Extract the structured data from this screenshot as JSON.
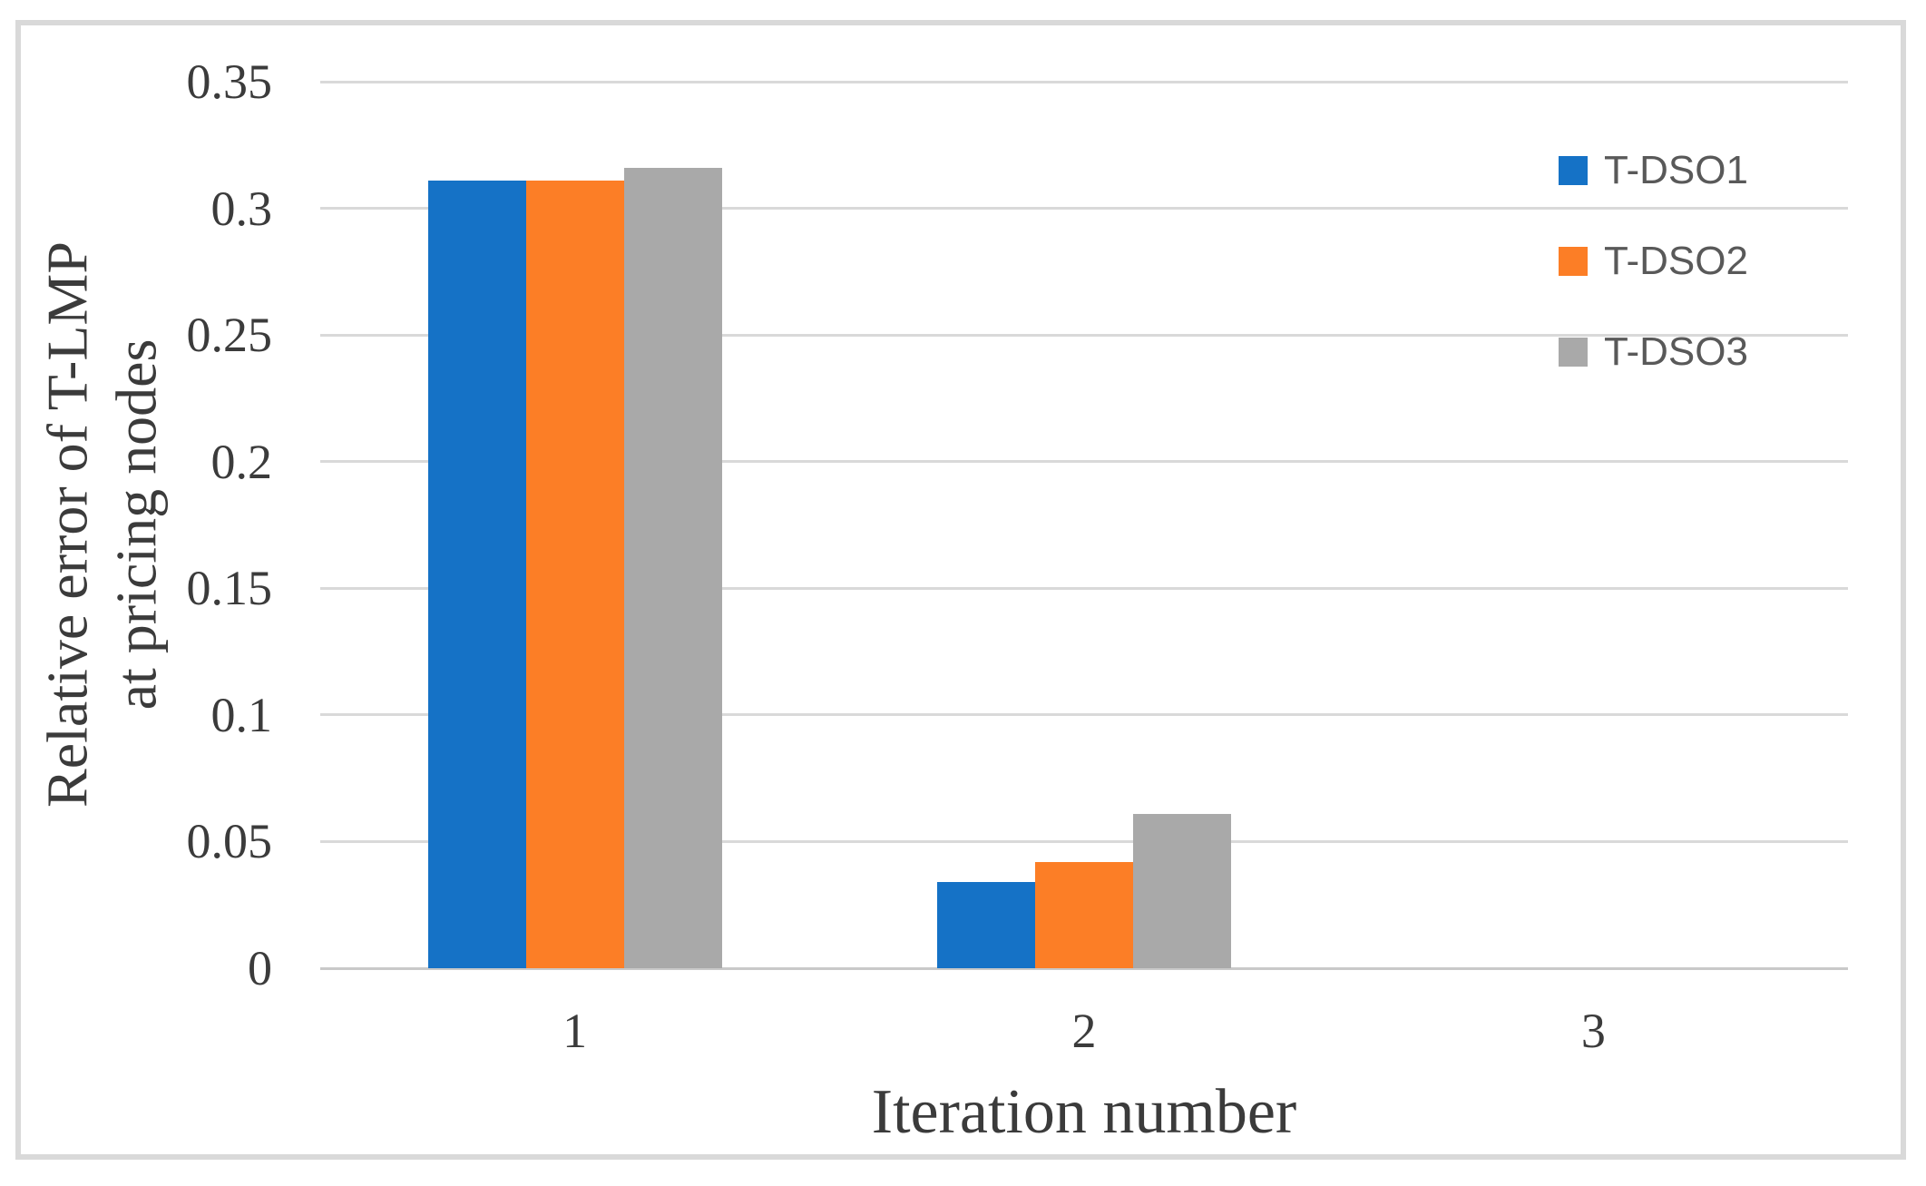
{
  "chart_data": {
    "type": "bar",
    "title": "",
    "categories": [
      "1",
      "2",
      "3"
    ],
    "series": [
      {
        "name": "T-DSO1",
        "color": "#1572c6",
        "values": [
          0.311,
          0.034,
          0
        ]
      },
      {
        "name": "T-DSO2",
        "color": "#fc7e26",
        "values": [
          0.311,
          0.042,
          0
        ]
      },
      {
        "name": "T-DSO3",
        "color": "#a9a9a9",
        "values": [
          0.316,
          0.061,
          0
        ]
      }
    ],
    "xlabel": "Iteration number",
    "ylabel": "Relative error of T-LMP at pricing nodes",
    "ylabel_lines": [
      "Relative error of T-LMP",
      "at pricing nodes"
    ],
    "ylim": [
      0,
      0.35
    ],
    "ytick_labels": [
      "0.35",
      "0.3",
      "0.25",
      "0.2",
      "0.15",
      "0.1",
      "0.05",
      "0"
    ],
    "grid": true,
    "legend_position": "inside-top-right",
    "colors": {
      "gridline": "#d9d9d9",
      "axis_line": "#c9c9c9",
      "frame_border": "#d9d9d9",
      "tick_text": "#3b3b3b",
      "legend_text": "#595959",
      "background": "#ffffff"
    }
  }
}
